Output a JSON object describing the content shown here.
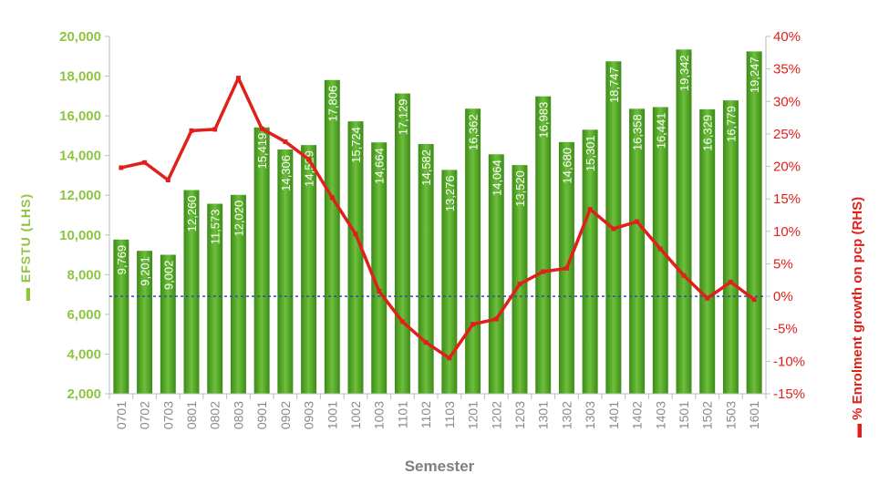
{
  "chart_data": {
    "type": "bar",
    "categories": [
      "0701",
      "0702",
      "0703",
      "0801",
      "0802",
      "0803",
      "0901",
      "0902",
      "0903",
      "1001",
      "1002",
      "1003",
      "1101",
      "1102",
      "1103",
      "1201",
      "1202",
      "1203",
      "1301",
      "1302",
      "1303",
      "1401",
      "1402",
      "1403",
      "1501",
      "1502",
      "1503",
      "1601"
    ],
    "series": [
      {
        "name": "EFSTU (LHS)",
        "type": "bar",
        "axis": "left",
        "color": "#4e9a1e",
        "values": [
          9769,
          9201,
          9002,
          12260,
          11573,
          12020,
          15419,
          14306,
          14529,
          17806,
          15724,
          14664,
          17129,
          14582,
          13276,
          16362,
          14064,
          13520,
          16983,
          14680,
          15301,
          18747,
          16358,
          16441,
          19342,
          16329,
          16779,
          19247
        ],
        "labels": [
          "9,769",
          "9,201",
          "9,002",
          "12,260",
          "11,573",
          "12,020",
          "15,419",
          "14,306",
          "14,529",
          "17,806",
          "15,724",
          "14,664",
          "17,129",
          "14,582",
          "13,276",
          "16,362",
          "14,064",
          "13,520",
          "16,983",
          "14,680",
          "15,301",
          "18,747",
          "16,358",
          "16,441",
          "19,342",
          "16,329",
          "16,779",
          "19,247"
        ]
      },
      {
        "name": "% Enrolment growth on pcp (RHS)",
        "type": "line",
        "axis": "right",
        "color": "#e0201a",
        "values": [
          19.8,
          20.6,
          17.9,
          25.5,
          25.7,
          33.6,
          25.8,
          23.8,
          21.1,
          15.2,
          9.6,
          0.8,
          -3.9,
          -7.1,
          -9.5,
          -4.3,
          -3.5,
          1.9,
          3.8,
          4.3,
          13.4,
          10.4,
          11.5,
          7.3,
          3.2,
          -0.3,
          2.2,
          -0.5
        ]
      }
    ],
    "xlabel": "Semester",
    "ylabel": "EFSTU (LHS)",
    "y2label": "% Enrolment growth on pcp (RHS)",
    "ylim": [
      2000,
      20000
    ],
    "yticks": [
      "2,000",
      "4,000",
      "6,000",
      "8,000",
      "10,000",
      "12,000",
      "14,000",
      "16,000",
      "18,000",
      "20,000"
    ],
    "y2lim": [
      -15,
      40
    ],
    "y2ticks": [
      "-15%",
      "-10%",
      "-5%",
      "0%",
      "5%",
      "10%",
      "15%",
      "20%",
      "25%",
      "30%",
      "35%",
      "40%"
    ],
    "zero_line": {
      "value": 0,
      "axis": "right",
      "color": "#2e4ea8",
      "style": "dashed"
    },
    "grid": false,
    "legend": "embedded-in-axis-titles"
  }
}
